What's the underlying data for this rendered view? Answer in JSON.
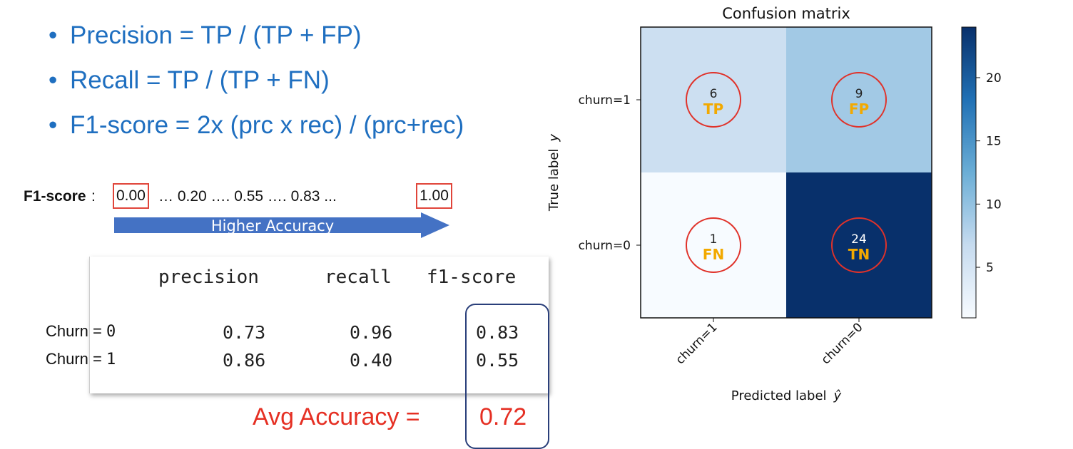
{
  "bullets": [
    {
      "text": "Precision = TP / (TP + FP)"
    },
    {
      "text": "Recall =  TP / (TP + FN)"
    },
    {
      "text": "F1-score = 2x (prc x rec) / (prc+rec)"
    }
  ],
  "bullet_char": "•",
  "f1_scale": {
    "label": "F1-score",
    "colon": ":",
    "low": "0.00",
    "middle": "… 0.20   ….  0.55 …. 0.83 ...",
    "high": "1.00",
    "arrow_label": "Higher Accuracy"
  },
  "report": {
    "headers": [
      "precision",
      "recall",
      "f1-score"
    ],
    "rows": [
      {
        "label": "Churn = ",
        "class": "0",
        "precision": "0.73",
        "recall": "0.96",
        "f1": "0.83"
      },
      {
        "label": "Churn = ",
        "class": "1",
        "precision": "0.86",
        "recall": "0.40",
        "f1": "0.55"
      }
    ]
  },
  "avg": {
    "label": "Avg Accuracy = ",
    "value": "0.72"
  },
  "colors": {
    "blue_text": "#1f6fc0",
    "red": "#e52f23",
    "tp_fp_text": "#f2a900",
    "arrow": "#4472c4"
  },
  "chart_data": {
    "type": "heatmap",
    "title": "Confusion matrix",
    "xlabel": "Predicted label",
    "xlabel_symbol": "ŷ",
    "ylabel": "True label",
    "ylabel_symbol": "y",
    "x_categories": [
      "churn=1",
      "churn=0"
    ],
    "y_categories": [
      "churn=1",
      "churn=0"
    ],
    "values": [
      [
        6,
        9
      ],
      [
        1,
        24
      ]
    ],
    "cell_tags": [
      [
        "TP",
        "FP"
      ],
      [
        "FN",
        "TN"
      ]
    ],
    "colormap": "Blues",
    "vmin": 1,
    "vmax": 24,
    "colorbar_ticks": [
      5,
      10,
      15,
      20
    ]
  }
}
